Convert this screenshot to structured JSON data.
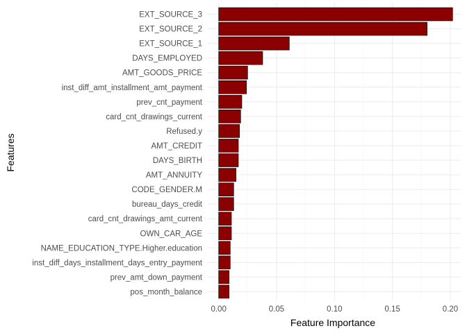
{
  "chart_data": {
    "type": "bar",
    "orientation": "horizontal",
    "title": "",
    "xlabel": "Feature Importance",
    "ylabel": "Features",
    "xlim": [
      -0.01,
      0.209
    ],
    "x_ticks": [
      0.0,
      0.05,
      0.1,
      0.15,
      0.2
    ],
    "x_tick_labels": [
      "0.00",
      "0.05",
      "0.10",
      "0.15",
      "0.20"
    ],
    "grid": true,
    "legend": "none",
    "bar_color": "#8b0000",
    "bar_edge_color": "#000000",
    "categories": [
      "EXT_SOURCE_3",
      "EXT_SOURCE_2",
      "EXT_SOURCE_1",
      "DAYS_EMPLOYED",
      "AMT_GOODS_PRICE",
      "inst_diff_amt_installment_amt_payment",
      "prev_cnt_payment",
      "card_cnt_drawings_current",
      "Refused.y",
      "AMT_CREDIT",
      "DAYS_BIRTH",
      "AMT_ANNUITY",
      "CODE_GENDER.M",
      "bureau_days_credit",
      "card_cnt_drawings_amt_current",
      "OWN_CAR_AGE",
      "NAME_EDUCATION_TYPE.Higher.education",
      "inst_diff_days_installment_days_entry_payment",
      "prev_amt_down_payment",
      "pos_month_balance"
    ],
    "values": [
      0.202,
      0.18,
      0.061,
      0.038,
      0.025,
      0.024,
      0.02,
      0.019,
      0.018,
      0.017,
      0.017,
      0.015,
      0.013,
      0.013,
      0.011,
      0.011,
      0.01,
      0.01,
      0.009,
      0.009
    ]
  }
}
